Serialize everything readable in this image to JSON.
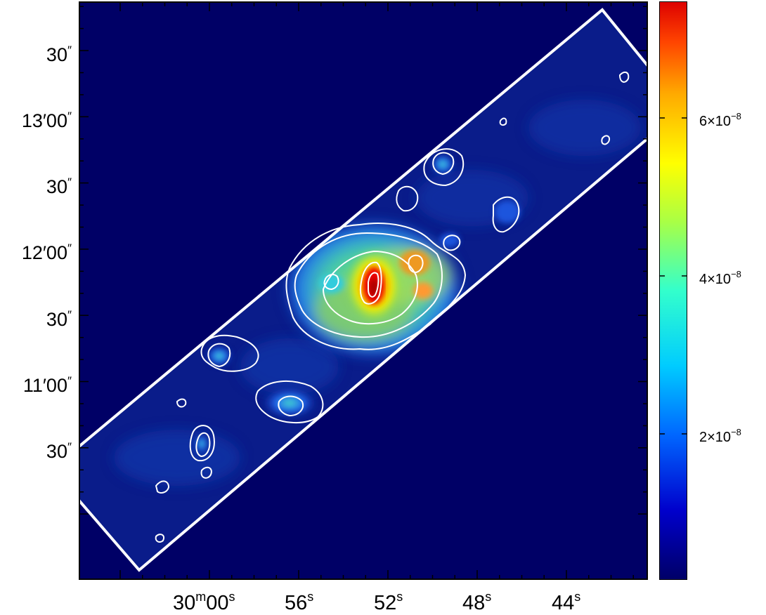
{
  "colors": {
    "background": "#000066",
    "frame": "#000000",
    "outline": "#ffffff"
  },
  "y_axis": {
    "labels": [
      {
        "deg": "",
        "main": "30",
        "sup": "″"
      },
      {
        "deg": "13",
        "main": "′00",
        "sup": "″"
      },
      {
        "deg": "",
        "main": "30",
        "sup": "″"
      },
      {
        "deg": "12",
        "main": "′00",
        "sup": "″"
      },
      {
        "deg": "",
        "main": "30",
        "sup": "″"
      },
      {
        "deg": "11",
        "main": "′00",
        "sup": "″"
      },
      {
        "deg": "",
        "main": "30",
        "sup": "″"
      }
    ]
  },
  "x_axis": {
    "labels": [
      {
        "main": "30",
        "sup1": "m",
        "main2": "00",
        "sup2": "s"
      },
      {
        "main": "56",
        "sup1": "",
        "main2": "",
        "sup2": "s"
      },
      {
        "main": "52",
        "sup1": "",
        "main2": "",
        "sup2": "s"
      },
      {
        "main": "48",
        "sup1": "",
        "main2": "",
        "sup2": "s"
      },
      {
        "main": "44",
        "sup1": "",
        "main2": "",
        "sup2": "s"
      }
    ]
  },
  "colorbar": {
    "colormap": "jet",
    "labels": [
      {
        "mant": "6×10",
        "exp": "−8"
      },
      {
        "mant": "4×10",
        "exp": "−8"
      },
      {
        "mant": "2×10",
        "exp": "−8"
      }
    ]
  }
}
